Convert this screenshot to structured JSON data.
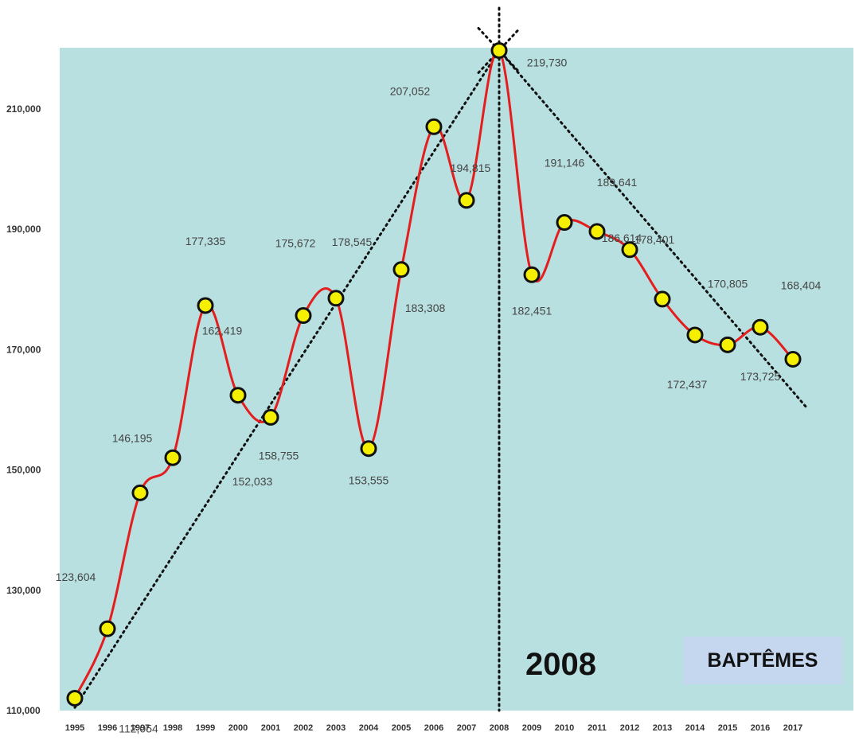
{
  "colors": {
    "plot_background": "#b9e0e0",
    "line": "#e41e1e",
    "marker_fill": "#f5f000",
    "marker_stroke": "#111111",
    "trend": "#111111"
  },
  "badge": {
    "text": "BAPTÊMES"
  },
  "annotation": {
    "year_marker": "2008"
  },
  "chart_data": {
    "type": "line",
    "title": "",
    "xlabel": "",
    "ylabel": "",
    "x": [
      1995,
      1996,
      1997,
      1998,
      1999,
      2000,
      2001,
      2002,
      2003,
      2004,
      2005,
      2006,
      2007,
      2008,
      2009,
      2010,
      2011,
      2012,
      2013,
      2014,
      2015,
      2016,
      2017
    ],
    "x_tick_labels": [
      "1995",
      "1996",
      "1997",
      "1998",
      "1999",
      "2000",
      "2001",
      "2002",
      "2003",
      "2004",
      "2005",
      "2006",
      "2007",
      "2008",
      "2009",
      "2010",
      "2011",
      "2012",
      "2013",
      "2014",
      "2015",
      "2016",
      "2017"
    ],
    "values": [
      112054,
      123604,
      146195,
      152033,
      177335,
      162419,
      158755,
      175672,
      178545,
      153555,
      183308,
      207052,
      194815,
      219730,
      182451,
      191146,
      189641,
      186614,
      178401,
      172437,
      170805,
      173725,
      168404
    ],
    "data_labels": [
      "112,054",
      "123,604",
      "146,195",
      "152,033",
      "177,335",
      "162,419",
      "158,755",
      "175,672",
      "178,545",
      "153,555",
      "183,308",
      "207,052",
      "194,815",
      "219,730",
      "182,451",
      "191,146",
      "189,641",
      "186,614",
      "178,401",
      "172,437",
      "170,805",
      "173,725",
      "168,404"
    ],
    "y_tick_values": [
      110000,
      130000,
      150000,
      170000,
      190000,
      210000
    ],
    "y_tick_labels": [
      "110,000",
      "130,000",
      "150,000",
      "170,000",
      "190,000",
      "210,000"
    ],
    "ylim": [
      110000,
      220500
    ],
    "grid": false,
    "trend_lines": [
      {
        "from": [
          1995,
          110500
        ],
        "to": [
          2008,
          219730
        ]
      },
      {
        "from": [
          2008,
          219730
        ],
        "to": [
          2017.4,
          160500
        ]
      }
    ],
    "vertical_marker_x": 2008
  }
}
